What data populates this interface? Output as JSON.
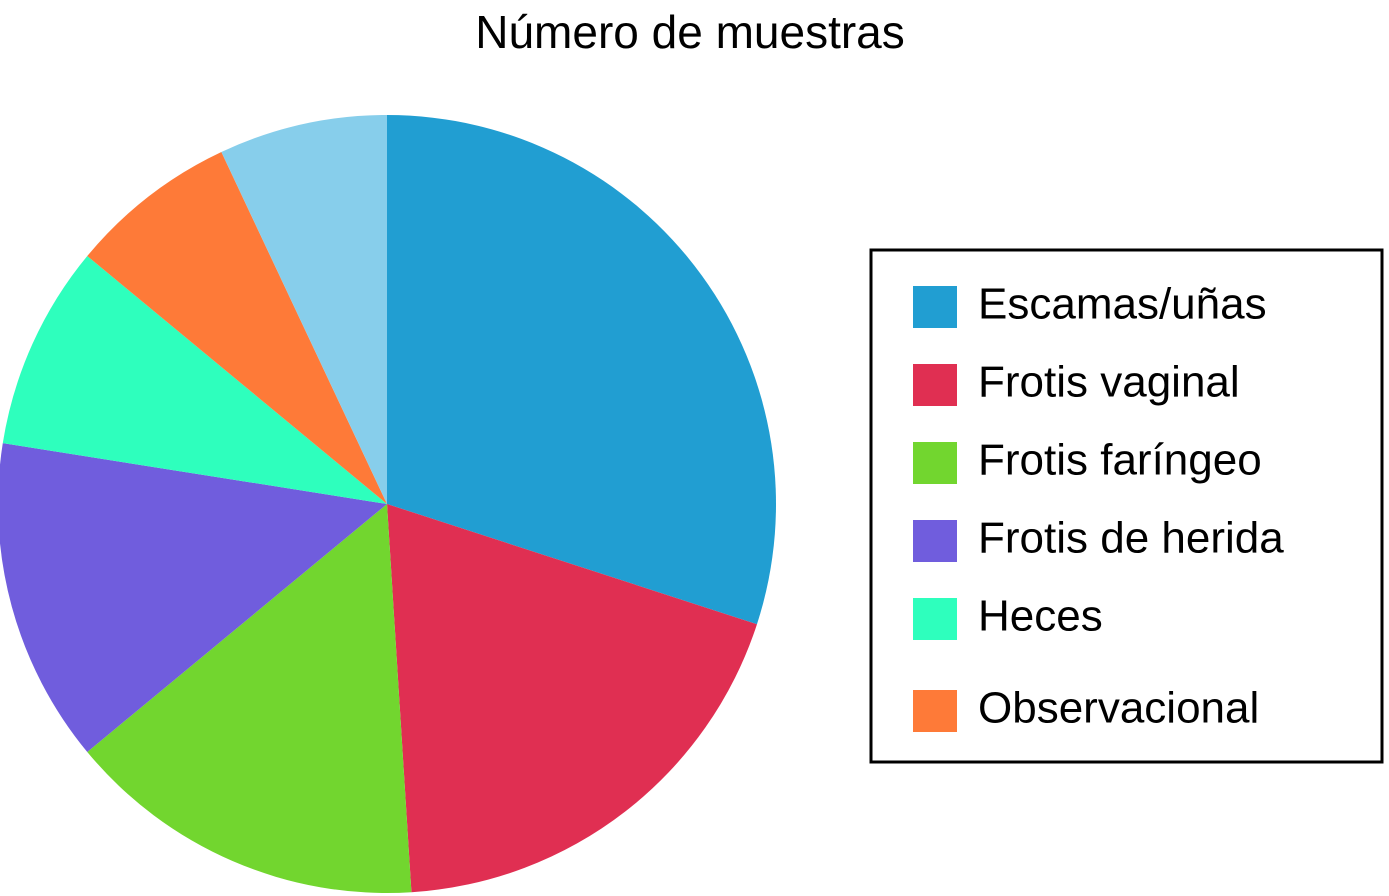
{
  "chart_data": {
    "type": "pie",
    "title": "Número de muestras",
    "categories": [
      "Escamas/uñas",
      "Frotis vaginal",
      "Frotis faríngeo",
      "Frotis de herida",
      "Heces",
      "Observacional",
      null
    ],
    "values": [
      30,
      19,
      15,
      13.5,
      8.5,
      7,
      7
    ],
    "colors": [
      "#219ed2",
      "#e02f52",
      "#72d62f",
      "#705ddd",
      "#2effbd",
      "#fe7a38",
      "#87ceeb"
    ],
    "legend": "right"
  }
}
